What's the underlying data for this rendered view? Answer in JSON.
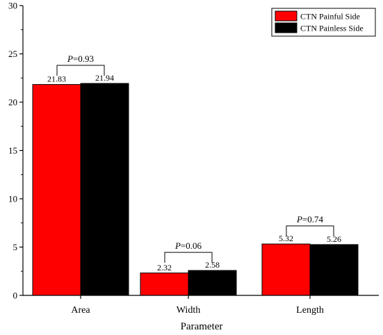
{
  "chart_data": {
    "type": "bar",
    "categories": [
      "Area",
      "Width",
      "Length"
    ],
    "series": [
      {
        "name": "CTN Painful Side",
        "values": [
          21.83,
          2.32,
          5.32
        ],
        "color": "#ff0000"
      },
      {
        "name": "CTN Painless Side",
        "values": [
          21.94,
          2.58,
          5.26
        ],
        "color": "#000000"
      }
    ],
    "value_labels": [
      [
        "21.83",
        "2.32",
        "5.32"
      ],
      [
        "21.94",
        "2.58",
        "5.26"
      ]
    ],
    "title": "",
    "xlabel": "Parameter",
    "ylabel": "",
    "ylim": [
      0,
      30
    ],
    "yticks": [
      "0",
      "5",
      "10",
      "15",
      "20",
      "25",
      "30"
    ],
    "grid": false,
    "legend_position": "top-right",
    "annotations": [
      {
        "category": "Area",
        "p_label": "P",
        "p_value": "=0.93"
      },
      {
        "category": "Width",
        "p_label": "P",
        "p_value": "=0.06"
      },
      {
        "category": "Length",
        "p_label": "P",
        "p_value": "=0.74"
      }
    ]
  }
}
